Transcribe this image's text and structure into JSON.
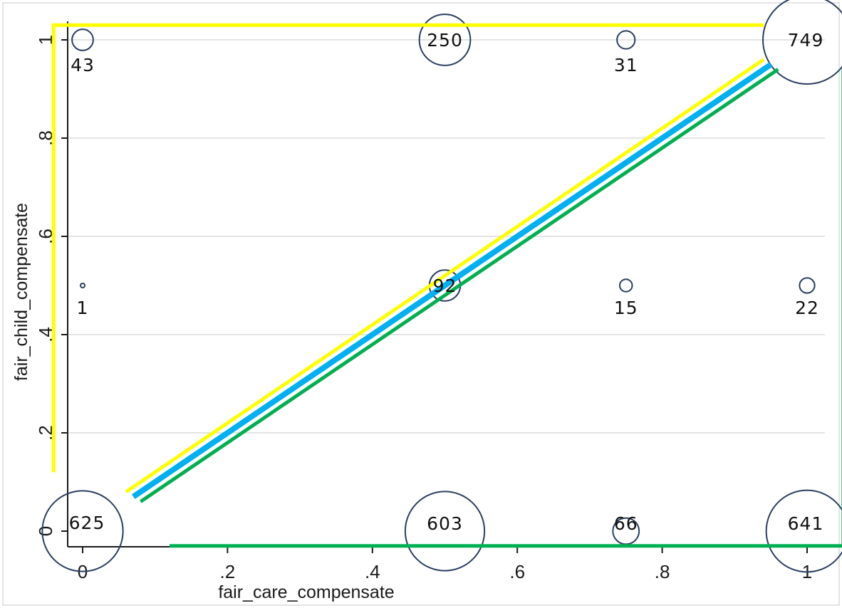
{
  "chart_data": {
    "type": "scatter",
    "title": "",
    "xlabel": "fair_care_compensate",
    "ylabel": "fair_child_compensate",
    "xlim": [
      0,
      1
    ],
    "ylim": [
      0,
      1
    ],
    "x_ticks": [
      {
        "value": 0,
        "label": "0"
      },
      {
        "value": 0.2,
        "label": ".2"
      },
      {
        "value": 0.4,
        "label": ".4"
      },
      {
        "value": 0.6,
        "label": ".6"
      },
      {
        "value": 0.8,
        "label": ".8"
      },
      {
        "value": 1,
        "label": "1"
      }
    ],
    "y_ticks": [
      {
        "value": 0,
        "label": "0"
      },
      {
        "value": 0.2,
        "label": ".2"
      },
      {
        "value": 0.4,
        "label": ".4"
      },
      {
        "value": 0.6,
        "label": ".6"
      },
      {
        "value": 0.8,
        "label": ".8"
      },
      {
        "value": 1,
        "label": "1"
      }
    ],
    "grid": "horizontal",
    "marker_size": "proportional to count",
    "points": [
      {
        "x": 0,
        "y": 1,
        "count": 43,
        "label": "43"
      },
      {
        "x": 0.5,
        "y": 1,
        "count": 250,
        "label": "250"
      },
      {
        "x": 0.75,
        "y": 1,
        "count": 31,
        "label": "31"
      },
      {
        "x": 1,
        "y": 1,
        "count": 749,
        "label": "749"
      },
      {
        "x": 0,
        "y": 0.5,
        "count": 1,
        "label": "1"
      },
      {
        "x": 0.5,
        "y": 0.5,
        "count": 92,
        "label": "92"
      },
      {
        "x": 0.75,
        "y": 0.5,
        "count": 15,
        "label": "15"
      },
      {
        "x": 1,
        "y": 0.5,
        "count": 22,
        "label": "22"
      },
      {
        "x": 0,
        "y": 0,
        "count": 625,
        "label": "625"
      },
      {
        "x": 0.5,
        "y": 0,
        "count": 603,
        "label": "603"
      },
      {
        "x": 0.75,
        "y": 0,
        "count": 66,
        "label": "66"
      },
      {
        "x": 1,
        "y": 0,
        "count": 641,
        "label": "641"
      }
    ],
    "overlay_lines": [
      {
        "name": "",
        "color": "#ffff00",
        "points": [
          [
            -0.04,
            0.12
          ],
          [
            -0.04,
            1.03
          ],
          [
            0.94,
            1.03
          ]
        ]
      },
      {
        "name": "",
        "color": "#ffff00",
        "points": [
          [
            0.06,
            0.08
          ],
          [
            0.94,
            0.96
          ]
        ]
      },
      {
        "name": "",
        "color": "#00b0f0",
        "points": [
          [
            0.07,
            0.07
          ],
          [
            0.95,
            0.95
          ]
        ]
      },
      {
        "name": "",
        "color": "#00b050",
        "points": [
          [
            0.08,
            0.06
          ],
          [
            0.96,
            0.94
          ]
        ]
      },
      {
        "name": "",
        "color": "#00b050",
        "points": [
          [
            0.12,
            -0.03
          ],
          [
            1.05,
            -0.03
          ],
          [
            1.05,
            0.94
          ]
        ]
      }
    ],
    "colors": {
      "marker": "#2a3f5f",
      "grid": "#e3e3e3",
      "axis": "#1a1a1a",
      "yellow": "#ffff00",
      "blue": "#00b0f0",
      "green": "#00b050"
    }
  }
}
